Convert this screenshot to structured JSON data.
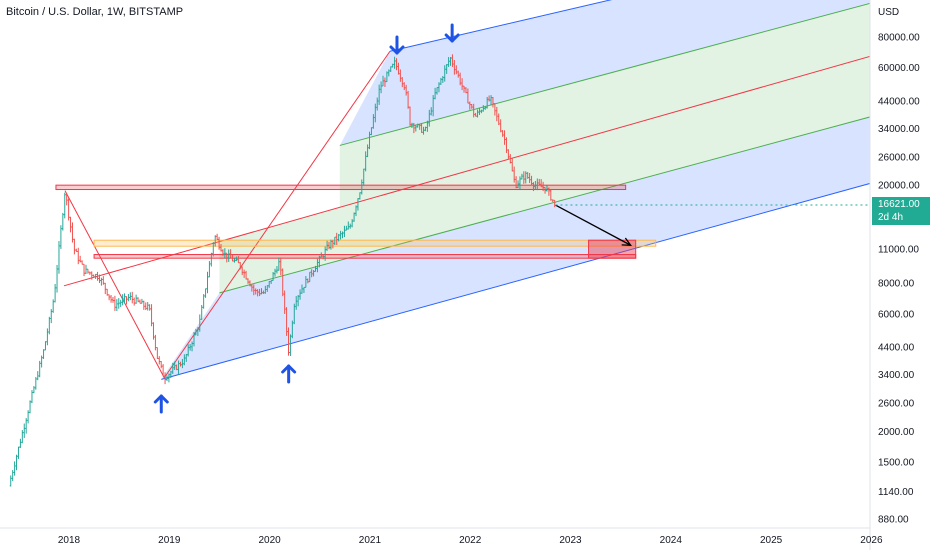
{
  "header": {
    "title": "Bitcoin / U.S. Dollar, 1W, BITSTAMP"
  },
  "price_tag": {
    "price": "16621.00",
    "countdown": "2d 4h",
    "color": "#22ab94"
  },
  "colors": {
    "up": "#26a69a",
    "down": "#ef5350",
    "channel_blue": "#2962ff",
    "channel_green": "#4caf50",
    "channel_red": "#f23645",
    "annotation_arrow": "#1e53e5"
  },
  "chart_data": {
    "type": "candlestick",
    "title": "Bitcoin / U.S. Dollar, 1W, BITSTAMP",
    "y_scale": "log",
    "y_unit": "USD",
    "y_ticks": [
      "80000.00",
      "60000.00",
      "44000.00",
      "34000.00",
      "26000.00",
      "20000.00",
      "11000.00",
      "8000.00",
      "6000.00",
      "4400.00",
      "3400.00",
      "2600.00",
      "2000.00",
      "1500.00",
      "1140.00",
      "880.00"
    ],
    "x_ticks": [
      "2018",
      "2019",
      "2020",
      "2021",
      "2022",
      "2023",
      "2024",
      "2025",
      "2026"
    ],
    "last_price": 16621,
    "path": [
      [
        2017.4,
        1200
      ],
      [
        2017.6,
        2500
      ],
      [
        2017.75,
        4300
      ],
      [
        2017.85,
        7000
      ],
      [
        2017.96,
        19000
      ],
      [
        2018.05,
        11000
      ],
      [
        2018.15,
        9000
      ],
      [
        2018.3,
        8500
      ],
      [
        2018.45,
        6500
      ],
      [
        2018.6,
        7000
      ],
      [
        2018.8,
        6300
      ],
      [
        2018.88,
        4000
      ],
      [
        2018.95,
        3300
      ],
      [
        2019.15,
        3900
      ],
      [
        2019.3,
        5500
      ],
      [
        2019.45,
        12500
      ],
      [
        2019.55,
        10500
      ],
      [
        2019.7,
        9500
      ],
      [
        2019.85,
        7400
      ],
      [
        2019.95,
        7300
      ],
      [
        2020.1,
        9800
      ],
      [
        2020.19,
        4200
      ],
      [
        2020.25,
        6800
      ],
      [
        2020.45,
        9300
      ],
      [
        2020.6,
        11500
      ],
      [
        2020.8,
        13500
      ],
      [
        2020.9,
        19000
      ],
      [
        2021.0,
        32000
      ],
      [
        2021.1,
        50000
      ],
      [
        2021.25,
        63000
      ],
      [
        2021.35,
        50000
      ],
      [
        2021.4,
        36000
      ],
      [
        2021.55,
        33000
      ],
      [
        2021.65,
        47000
      ],
      [
        2021.8,
        66000
      ],
      [
        2021.87,
        57000
      ],
      [
        2021.95,
        47000
      ],
      [
        2022.05,
        38000
      ],
      [
        2022.2,
        45000
      ],
      [
        2022.35,
        30000
      ],
      [
        2022.45,
        20000
      ],
      [
        2022.55,
        22000
      ],
      [
        2022.65,
        20000
      ],
      [
        2022.75,
        19500
      ],
      [
        2022.85,
        16621
      ]
    ],
    "drawings": {
      "horizontal_zones": [
        {
          "from": 2017.87,
          "to": 2023.55,
          "low": 19200,
          "high": 20000,
          "fill": "#f23645"
        },
        {
          "from": 2018.25,
          "to": 2023.85,
          "low": 11300,
          "high": 11950,
          "fill": "#ffb74d"
        },
        {
          "from": 2018.25,
          "to": 2023.65,
          "low": 10100,
          "high": 10450,
          "fill": "#f23645"
        },
        {
          "from": 2023.18,
          "to": 2023.65,
          "low": 10100,
          "high": 11950,
          "fill": "#f23645"
        }
      ],
      "channel": {
        "lower": [
          [
            2018.92,
            3250
          ],
          [
            2026.0,
            20400
          ]
        ],
        "median_low": [
          [
            2019.5,
            7300
          ],
          [
            2026.0,
            38000
          ]
        ],
        "middle": [
          [
            2017.95,
            7800
          ],
          [
            2026.0,
            67000
          ]
        ],
        "median_high": [
          [
            2020.7,
            29000
          ],
          [
            2026.0,
            110000
          ]
        ],
        "upper": [
          [
            2021.2,
            70000
          ],
          [
            2026.0,
            200000
          ]
        ]
      },
      "projection_arrow": [
        [
          2022.85,
          16600
        ],
        [
          2023.6,
          11400
        ]
      ],
      "markers": [
        {
          "x": 2018.92,
          "direction": "up"
        },
        {
          "x": 2020.19,
          "direction": "up"
        },
        {
          "x": 2021.27,
          "direction": "down"
        },
        {
          "x": 2021.82,
          "direction": "down"
        }
      ]
    }
  }
}
